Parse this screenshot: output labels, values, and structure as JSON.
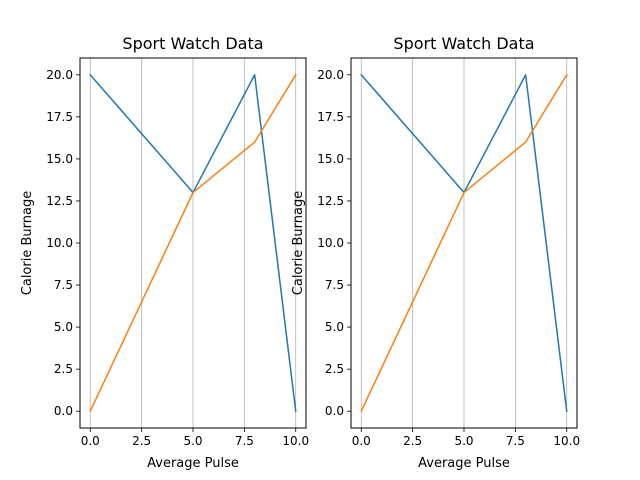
{
  "chart_data": [
    {
      "type": "line",
      "title": "Sport Watch Data",
      "xlabel": "Average Pulse",
      "ylabel": "Calorie Burnage",
      "xlim": [
        -0.5,
        10.5
      ],
      "ylim": [
        -1,
        21
      ],
      "xticks": [
        0.0,
        2.5,
        5.0,
        7.5,
        10.0
      ],
      "xtick_labels": [
        "0.0",
        "2.5",
        "5.0",
        "7.5",
        "10.0"
      ],
      "yticks": [
        0.0,
        2.5,
        5.0,
        7.5,
        10.0,
        12.5,
        15.0,
        17.5,
        20.0
      ],
      "ytick_labels": [
        "0.0",
        "2.5",
        "5.0",
        "7.5",
        "10.0",
        "12.5",
        "15.0",
        "17.5",
        "20.0"
      ],
      "grid": "x",
      "series": [
        {
          "x": [
            0,
            5,
            8,
            10
          ],
          "values": [
            20,
            13,
            20,
            0
          ],
          "color": "#1f77b4"
        },
        {
          "x": [
            0,
            5,
            8,
            10
          ],
          "values": [
            0,
            13,
            16,
            20
          ],
          "color": "#ff7f0e"
        }
      ]
    },
    {
      "type": "line",
      "title": "Sport Watch Data",
      "xlabel": "Average Pulse",
      "ylabel": "Calorie Burnage",
      "xlim": [
        -0.5,
        10.5
      ],
      "ylim": [
        -1,
        21
      ],
      "xticks": [
        0.0,
        2.5,
        5.0,
        7.5,
        10.0
      ],
      "xtick_labels": [
        "0.0",
        "2.5",
        "5.0",
        "7.5",
        "10.0"
      ],
      "yticks": [
        0.0,
        2.5,
        5.0,
        7.5,
        10.0,
        12.5,
        15.0,
        17.5,
        20.0
      ],
      "ytick_labels": [
        "0.0",
        "2.5",
        "5.0",
        "7.5",
        "10.0",
        "12.5",
        "15.0",
        "17.5",
        "20.0"
      ],
      "grid": "x",
      "series": [
        {
          "x": [
            0,
            5,
            8,
            10
          ],
          "values": [
            20,
            13,
            20,
            0
          ],
          "color": "#1f77b4"
        },
        {
          "x": [
            0,
            5,
            8,
            10
          ],
          "values": [
            0,
            13,
            16,
            20
          ],
          "color": "#ff7f0e"
        }
      ]
    }
  ]
}
